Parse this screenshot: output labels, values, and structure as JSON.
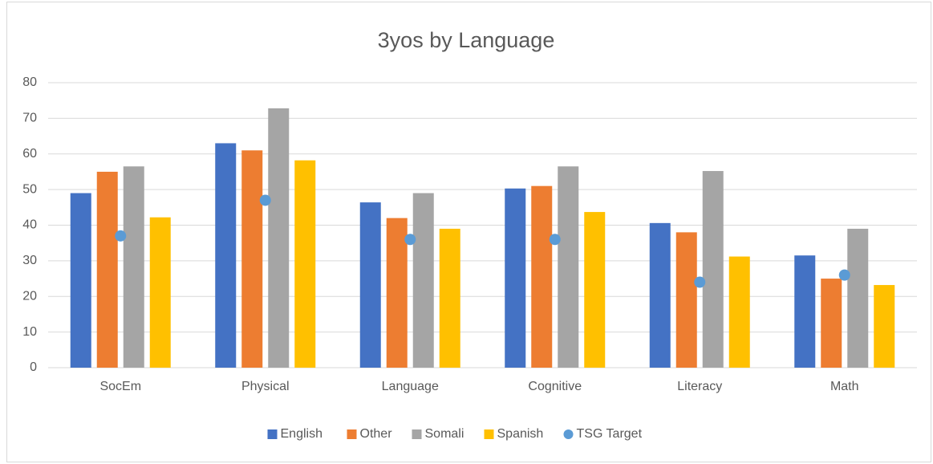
{
  "chart_data": {
    "type": "bar",
    "title": "3yos by Language",
    "categories": [
      "SocEm",
      "Physical",
      "Language",
      "Cognitive",
      "Literacy",
      "Math"
    ],
    "series": [
      {
        "name": "English",
        "color": "#4472c4",
        "values": [
          49,
          63,
          46.4,
          50.3,
          40.6,
          31.5
        ]
      },
      {
        "name": "Other",
        "color": "#ed7d31",
        "values": [
          55,
          61,
          42,
          51,
          38,
          25
        ]
      },
      {
        "name": "Somali",
        "color": "#a5a5a5",
        "values": [
          56.5,
          72.8,
          49,
          56.5,
          55.2,
          39
        ]
      },
      {
        "name": "Spanish",
        "color": "#ffc000",
        "values": [
          42.2,
          58.2,
          39,
          43.7,
          31.2,
          23.2
        ]
      },
      {
        "name": "TSG Target",
        "color": "#5b9bd5",
        "type": "scatter",
        "values": [
          37,
          47,
          36,
          36,
          24,
          26
        ]
      }
    ],
    "ylim": [
      0,
      80
    ],
    "yticks": [
      0,
      10,
      20,
      30,
      40,
      50,
      60,
      70,
      80
    ],
    "grid": true,
    "legend": "bottom"
  }
}
